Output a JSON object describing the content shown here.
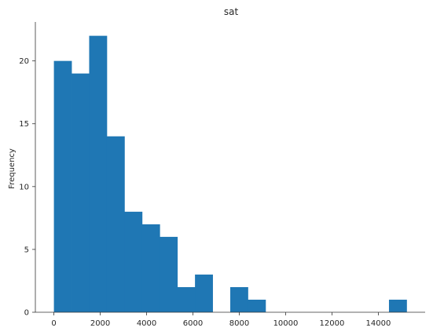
{
  "chart_data": {
    "type": "bar",
    "title": "sat",
    "xlabel": "",
    "ylabel": "Frequency",
    "bin_edges": [
      0,
      761,
      1522,
      2283,
      3044,
      3805,
      4566,
      5327,
      6088,
      6849,
      7610,
      8371,
      9132,
      9893,
      10654,
      11415,
      12176,
      12937,
      13698,
      14459,
      15220
    ],
    "values": [
      20,
      19,
      22,
      14,
      8,
      7,
      6,
      2,
      3,
      0,
      2,
      1,
      0,
      0,
      0,
      0,
      0,
      0,
      0,
      1
    ],
    "xlim": [
      -800,
      16020
    ],
    "ylim": [
      0,
      23.1
    ],
    "xticks": [
      0,
      2000,
      4000,
      6000,
      8000,
      10000,
      12000,
      14000
    ],
    "yticks": [
      0,
      5,
      10,
      15,
      20
    ],
    "bar_color": "#1f77b4",
    "grid": false,
    "legend": "none"
  }
}
